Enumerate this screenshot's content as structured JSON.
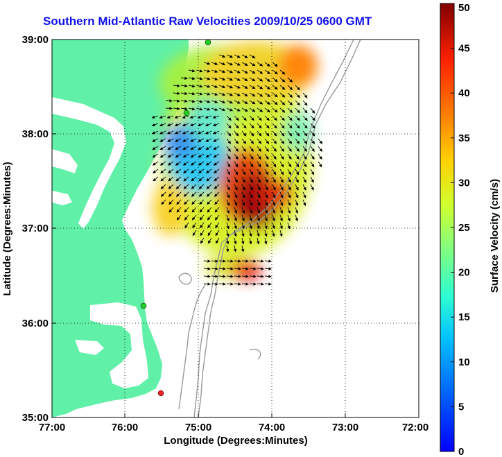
{
  "title": "Southern Mid-Atlantic Raw Velocities 2009/10/25 0600 GMT",
  "xaxis": {
    "label": "Longitude (Degrees:Minutes)",
    "ticks": [
      "77:00",
      "76:00",
      "75:00",
      "74:00",
      "73:00",
      "72:00"
    ]
  },
  "yaxis": {
    "label": "Latitude (Degrees:Minutes)",
    "ticks": [
      "39:00",
      "38:00",
      "37:00",
      "36:00",
      "35:00"
    ]
  },
  "colorbar": {
    "label": "Surface Velocity (cm/s)",
    "ticks": [
      "50",
      "45",
      "40",
      "35",
      "30",
      "25",
      "20",
      "15",
      "10",
      "5",
      "0"
    ],
    "min": 0,
    "max": 50,
    "colormap": "jet"
  },
  "map": {
    "lon_range": [
      -77,
      -72
    ],
    "lat_range": [
      35,
      39
    ],
    "land_color": "#60f0a8",
    "contour_color": "#999999",
    "station_color_green": "#22cc22",
    "station_color_red": "#ee2222"
  }
}
